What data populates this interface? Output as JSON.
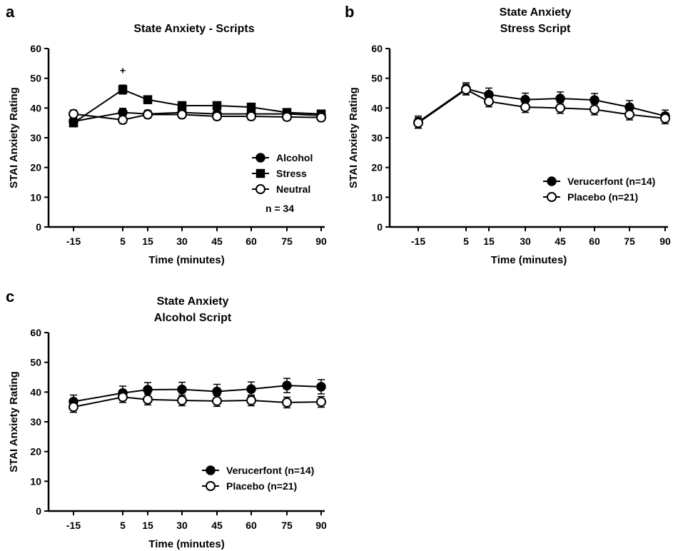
{
  "chart_data": [
    {
      "panel": "a",
      "type": "line",
      "title": [
        "State Anxiety - Scripts"
      ],
      "xlabel": "Time (minutes)",
      "ylabel": "STAI Anxiety Rating",
      "ylim": [
        0,
        60
      ],
      "yticks": [
        0,
        10,
        20,
        30,
        40,
        50,
        60
      ],
      "x": [
        -15,
        5,
        15,
        30,
        45,
        60,
        75,
        90
      ],
      "x_tick_labels": [
        "-15",
        "5",
        "15",
        "30",
        "45",
        "60",
        "75",
        "90"
      ],
      "legend_position": "bottom-right",
      "series": [
        {
          "name": "Alcohol",
          "marker": "filled-circle",
          "values": [
            35.5,
            38.5,
            38.0,
            38.5,
            38.0,
            38.0,
            38.0,
            37.5
          ],
          "error": [
            1.2,
            1.4,
            1.2,
            1.2,
            1.2,
            1.2,
            1.2,
            1.2
          ]
        },
        {
          "name": "Stress",
          "marker": "filled-square",
          "values": [
            35.0,
            46.2,
            42.8,
            40.8,
            40.8,
            40.3,
            38.5,
            38.0
          ],
          "error": [
            1.2,
            1.5,
            1.3,
            1.3,
            1.3,
            1.3,
            1.2,
            1.2
          ]
        },
        {
          "name": "Neutral",
          "marker": "open-circle",
          "values": [
            38.0,
            36.0,
            37.8,
            37.8,
            37.2,
            37.2,
            37.0,
            36.8
          ],
          "error": [
            1.3,
            1.2,
            1.2,
            1.2,
            1.2,
            1.2,
            1.2,
            1.2
          ]
        }
      ],
      "annotations": [
        {
          "text": "+",
          "at_x": 5,
          "at_y": 52
        },
        {
          "text": "n = 34"
        }
      ]
    },
    {
      "panel": "b",
      "type": "line",
      "title": [
        "State Anxiety",
        "Stress Script"
      ],
      "xlabel": "Time (minutes)",
      "ylabel": "STAI Anxiety Rating",
      "ylim": [
        0,
        60
      ],
      "yticks": [
        0,
        10,
        20,
        30,
        40,
        50,
        60
      ],
      "x": [
        -15,
        5,
        15,
        30,
        45,
        60,
        75,
        90
      ],
      "x_tick_labels": [
        "-15",
        "5",
        "15",
        "30",
        "45",
        "60",
        "75",
        "90"
      ],
      "legend_position": "bottom-right",
      "series": [
        {
          "name": "Verucerfont (n=14)",
          "marker": "filled-circle",
          "values": [
            35.3,
            46.5,
            44.5,
            42.8,
            43.2,
            42.7,
            40.3,
            37.3
          ],
          "error": [
            2.0,
            2.0,
            2.2,
            2.2,
            2.2,
            2.2,
            2.2,
            2.0
          ]
        },
        {
          "name": "Placebo (n=21)",
          "marker": "open-circle",
          "values": [
            35.0,
            46.2,
            42.2,
            40.3,
            40.0,
            39.5,
            37.8,
            36.5
          ],
          "error": [
            1.8,
            1.8,
            1.8,
            1.8,
            1.8,
            1.8,
            1.8,
            1.8
          ]
        }
      ]
    },
    {
      "panel": "c",
      "type": "line",
      "title": [
        "State Anxiety",
        "Alcohol Script"
      ],
      "xlabel": "Time (minutes)",
      "ylabel": "STAI Anxiety Rating",
      "ylim": [
        0,
        60
      ],
      "yticks": [
        0,
        10,
        20,
        30,
        40,
        50,
        60
      ],
      "x": [
        -15,
        5,
        15,
        30,
        45,
        60,
        75,
        90
      ],
      "x_tick_labels": [
        "-15",
        "5",
        "15",
        "30",
        "45",
        "60",
        "75",
        "90"
      ],
      "legend_position": "bottom-right",
      "series": [
        {
          "name": "Verucerfont (n=14)",
          "marker": "filled-circle",
          "values": [
            36.8,
            39.7,
            40.8,
            40.9,
            40.2,
            41.0,
            42.2,
            41.8
          ],
          "error": [
            2.2,
            2.3,
            2.4,
            2.4,
            2.4,
            2.4,
            2.4,
            2.4
          ]
        },
        {
          "name": "Placebo (n=21)",
          "marker": "open-circle",
          "values": [
            35.0,
            38.3,
            37.5,
            37.2,
            37.0,
            37.2,
            36.5,
            36.7
          ],
          "error": [
            1.8,
            1.8,
            1.8,
            1.8,
            1.8,
            1.8,
            1.8,
            1.8
          ]
        }
      ]
    }
  ]
}
